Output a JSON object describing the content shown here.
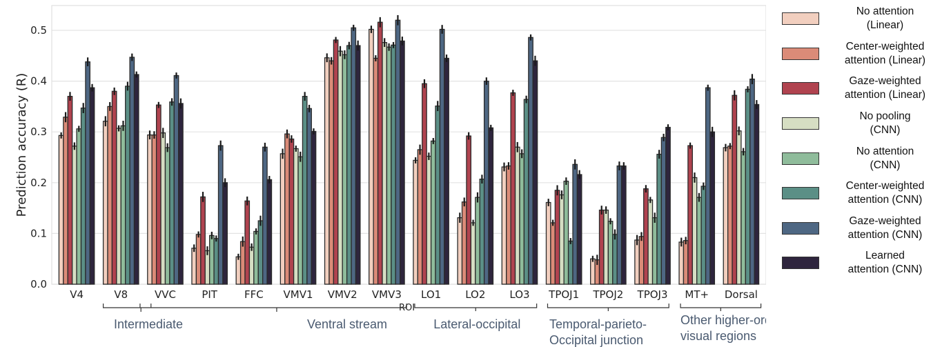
{
  "chart_data": {
    "type": "bar",
    "title": "",
    "xlabel": "ROI",
    "ylabel": "Prediction accuracy (R)",
    "ylim": [
      0,
      0.55
    ],
    "yticks": [
      "0.0",
      "0.1",
      "0.2",
      "0.3",
      "0.4",
      "0.5"
    ],
    "ytick_values": [
      0,
      0.1,
      0.2,
      0.3,
      0.4,
      0.5
    ],
    "grid": true,
    "legend_position": "right",
    "categories": [
      "V4",
      "V8",
      "VVC",
      "PIT",
      "FFC",
      "VMV1",
      "VMV2",
      "VMV3",
      "LO1",
      "LO2",
      "LO3",
      "TPOJ1",
      "TPOJ2",
      "TPOJ3",
      "MT+",
      "Dorsal"
    ],
    "series": [
      {
        "name": "No attention (Linear)",
        "legend": "No attention\n(Linear)",
        "color": "#f2cfbf",
        "values": [
          0.293,
          0.321,
          0.294,
          0.071,
          0.054,
          0.257,
          0.446,
          0.502,
          0.244,
          0.131,
          0.231,
          0.161,
          0.05,
          0.087,
          0.083,
          0.269
        ]
      },
      {
        "name": "Center-weighted attention (Linear)",
        "legend": "Center-weighted\nattention (Linear)",
        "color": "#db8b78",
        "values": [
          0.329,
          0.35,
          0.294,
          0.098,
          0.084,
          0.296,
          0.44,
          0.445,
          0.265,
          0.162,
          0.233,
          0.121,
          0.048,
          0.094,
          0.086,
          0.272
        ]
      },
      {
        "name": "Gaze-weighted attention (Linear)",
        "legend": "Gaze-weighted\nattention (Linear)",
        "color": "#b0434f",
        "values": [
          0.37,
          0.38,
          0.353,
          0.172,
          0.164,
          0.286,
          0.481,
          0.516,
          0.395,
          0.292,
          0.377,
          0.185,
          0.146,
          0.188,
          0.273,
          0.372
        ]
      },
      {
        "name": "No pooling (CNN)",
        "legend": "No pooling\n(CNN)",
        "color": "#d6dec3",
        "values": [
          0.272,
          0.307,
          0.298,
          0.066,
          0.073,
          0.267,
          0.459,
          0.476,
          0.252,
          0.121,
          0.27,
          0.176,
          0.146,
          0.166,
          0.21,
          0.302
        ]
      },
      {
        "name": "No attention (CNN)",
        "legend": "No attention\n(CNN)",
        "color": "#8fbc9b",
        "values": [
          0.306,
          0.312,
          0.269,
          0.096,
          0.104,
          0.251,
          0.452,
          0.467,
          0.282,
          0.171,
          0.257,
          0.203,
          0.124,
          0.131,
          0.171,
          0.261
        ]
      },
      {
        "name": "Center-weighted attention (CNN)",
        "legend": "Center-weighted\nattention (CNN)",
        "color": "#5b8f86",
        "values": [
          0.347,
          0.39,
          0.359,
          0.09,
          0.125,
          0.37,
          0.47,
          0.471,
          0.351,
          0.207,
          0.364,
          0.085,
          0.098,
          0.256,
          0.193,
          0.384
        ]
      },
      {
        "name": "Gaze-weighted attention (CNN)",
        "legend": "Gaze-weighted\nattention (CNN)",
        "color": "#4e6783",
        "values": [
          0.438,
          0.447,
          0.411,
          0.273,
          0.27,
          0.346,
          0.505,
          0.52,
          0.502,
          0.4,
          0.486,
          0.236,
          0.233,
          0.289,
          0.387,
          0.404
        ]
      },
      {
        "name": "Learned attention (CNN)",
        "legend": "Learned\nattention (CNN)",
        "color": "#2e253d",
        "values": [
          0.387,
          0.413,
          0.356,
          0.2,
          0.206,
          0.301,
          0.47,
          0.479,
          0.445,
          0.308,
          0.44,
          0.216,
          0.233,
          0.309,
          0.3,
          0.354
        ]
      }
    ],
    "groups": [
      {
        "label": "Intermediate",
        "lines": [
          "Intermediate"
        ],
        "members": [
          "V8",
          "VVC"
        ]
      },
      {
        "label": "Ventral stream",
        "lines": [
          "Ventral stream"
        ],
        "members": [
          "VVC",
          "PIT",
          "FFC",
          "VMV1",
          "VMV2",
          "VMV3"
        ]
      },
      {
        "label": "Lateral-occipital",
        "lines": [
          "Lateral-occipital"
        ],
        "members": [
          "LO1",
          "LO2",
          "LO3"
        ]
      },
      {
        "label": "Temporal-parieto-Occipital junction",
        "lines": [
          "Temporal-parieto-",
          "Occipital junction"
        ],
        "members": [
          "TPOJ1",
          "TPOJ2",
          "TPOJ3"
        ]
      },
      {
        "label": "Other higher-order visual regions",
        "lines": [
          "Other higher-order",
          "visual regions"
        ],
        "members": [
          "MT+",
          "Dorsal"
        ]
      }
    ]
  }
}
